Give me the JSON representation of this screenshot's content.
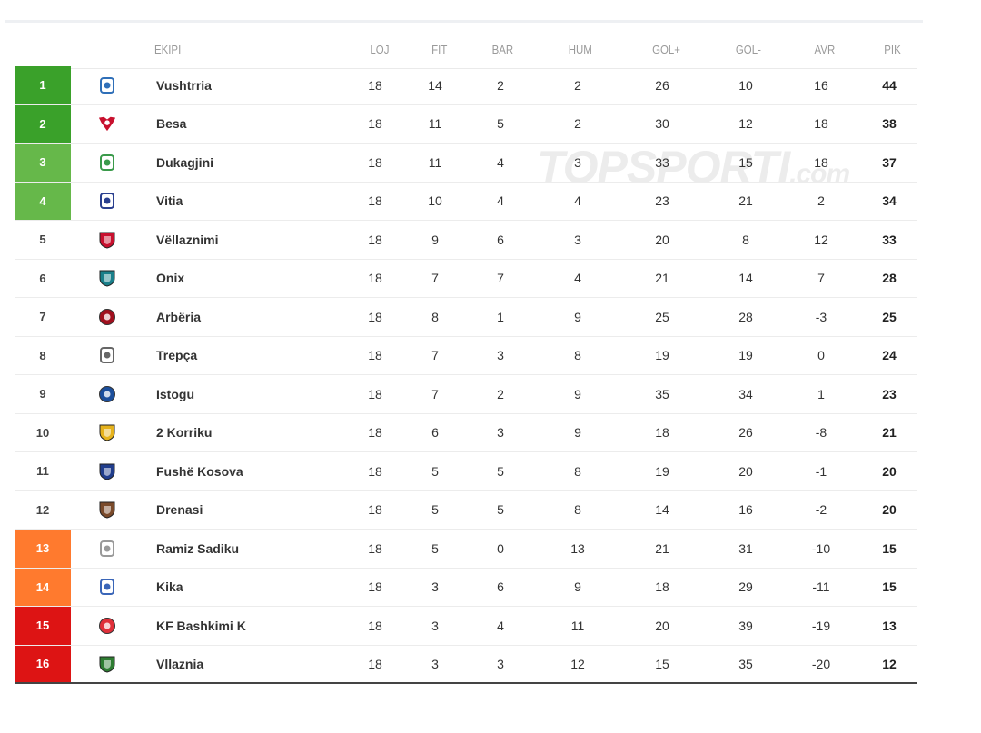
{
  "colors": {
    "champion": "#3aa12a",
    "promo": "#66b84a",
    "relegation_playoff": "#ff7a2e",
    "relegation": "#dd1414"
  },
  "watermark": {
    "brand": "TOPSPORTI",
    "domain": ".com"
  },
  "headers": {
    "team": "EKIPI",
    "played": "LOJ",
    "won": "FIT",
    "drawn": "BAR",
    "lost": "HUM",
    "gf": "GOL+",
    "ga": "GOL-",
    "gd": "AVR",
    "pts": "PIK"
  },
  "rows": [
    {
      "pos": "1",
      "team": "Vushtrria",
      "played": "18",
      "won": "14",
      "drawn": "2",
      "lost": "2",
      "gf": "26",
      "ga": "10",
      "gd": "16",
      "pts": "44",
      "zone": "champion",
      "logo": "crest-blue-white",
      "logo_color": "#2f6fb8"
    },
    {
      "pos": "2",
      "team": "Besa",
      "played": "18",
      "won": "11",
      "drawn": "5",
      "lost": "2",
      "gf": "30",
      "ga": "12",
      "gd": "18",
      "pts": "38",
      "zone": "champion",
      "logo": "eagle-red",
      "logo_color": "#c8102e"
    },
    {
      "pos": "3",
      "team": "Dukagjini",
      "played": "18",
      "won": "11",
      "drawn": "4",
      "lost": "3",
      "gf": "33",
      "ga": "15",
      "gd": "18",
      "pts": "37",
      "zone": "promo",
      "logo": "crest-green",
      "logo_color": "#3a9a4a"
    },
    {
      "pos": "4",
      "team": "Vitia",
      "played": "18",
      "won": "10",
      "drawn": "4",
      "lost": "4",
      "gf": "23",
      "ga": "21",
      "gd": "2",
      "pts": "34",
      "zone": "promo",
      "logo": "crest-blue",
      "logo_color": "#2a3f8f"
    },
    {
      "pos": "5",
      "team": "Vëllaznimi",
      "played": "18",
      "won": "9",
      "drawn": "6",
      "lost": "3",
      "gf": "20",
      "ga": "8",
      "gd": "12",
      "pts": "33",
      "zone": "",
      "logo": "shield-red",
      "logo_color": "#c8102e"
    },
    {
      "pos": "6",
      "team": "Onix",
      "played": "18",
      "won": "7",
      "drawn": "7",
      "lost": "4",
      "gf": "21",
      "ga": "14",
      "gd": "7",
      "pts": "28",
      "zone": "",
      "logo": "shield-teal",
      "logo_color": "#1a7f8a"
    },
    {
      "pos": "7",
      "team": "Arbëria",
      "played": "18",
      "won": "8",
      "drawn": "1",
      "lost": "9",
      "gf": "25",
      "ga": "28",
      "gd": "-3",
      "pts": "25",
      "zone": "",
      "logo": "circle-red-black",
      "logo_color": "#a0101e"
    },
    {
      "pos": "8",
      "team": "Trepça",
      "played": "18",
      "won": "7",
      "drawn": "3",
      "lost": "8",
      "gf": "19",
      "ga": "19",
      "gd": "0",
      "pts": "24",
      "zone": "",
      "logo": "crest-gray",
      "logo_color": "#666666"
    },
    {
      "pos": "9",
      "team": "Istogu",
      "played": "18",
      "won": "7",
      "drawn": "2",
      "lost": "9",
      "gf": "35",
      "ga": "34",
      "gd": "1",
      "pts": "23",
      "zone": "",
      "logo": "ball-blue",
      "logo_color": "#1c4f9c"
    },
    {
      "pos": "10",
      "team": "2 Korriku",
      "played": "18",
      "won": "6",
      "drawn": "3",
      "lost": "9",
      "gf": "18",
      "ga": "26",
      "gd": "-8",
      "pts": "21",
      "zone": "",
      "logo": "shield-yellow-black",
      "logo_color": "#e5b21c"
    },
    {
      "pos": "11",
      "team": "Fushë Kosova",
      "played": "18",
      "won": "5",
      "drawn": "5",
      "lost": "8",
      "gf": "19",
      "ga": "20",
      "gd": "-1",
      "pts": "20",
      "zone": "",
      "logo": "shield-blue",
      "logo_color": "#203d8c"
    },
    {
      "pos": "12",
      "team": "Drenasi",
      "played": "18",
      "won": "5",
      "drawn": "5",
      "lost": "8",
      "gf": "14",
      "ga": "16",
      "gd": "-2",
      "pts": "20",
      "zone": "",
      "logo": "shield-brown",
      "logo_color": "#7a4a2a"
    },
    {
      "pos": "13",
      "team": "Ramiz Sadiku",
      "played": "18",
      "won": "5",
      "drawn": "0",
      "lost": "13",
      "gf": "21",
      "ga": "31",
      "gd": "-10",
      "pts": "15",
      "zone": "relegation_playoff",
      "logo": "crest-gray-light",
      "logo_color": "#9a9a9a"
    },
    {
      "pos": "14",
      "team": "Kika",
      "played": "18",
      "won": "3",
      "drawn": "6",
      "lost": "9",
      "gf": "18",
      "ga": "29",
      "gd": "-11",
      "pts": "15",
      "zone": "relegation_playoff",
      "logo": "crest-blue-small",
      "logo_color": "#3a66b8"
    },
    {
      "pos": "15",
      "team": "KF Bashkimi K",
      "played": "18",
      "won": "3",
      "drawn": "4",
      "lost": "11",
      "gf": "20",
      "ga": "39",
      "gd": "-19",
      "pts": "13",
      "zone": "relegation",
      "logo": "circle-red",
      "logo_color": "#e0303a"
    },
    {
      "pos": "16",
      "team": "Vllaznia",
      "played": "18",
      "won": "3",
      "drawn": "3",
      "lost": "12",
      "gf": "15",
      "ga": "35",
      "gd": "-20",
      "pts": "12",
      "zone": "relegation",
      "logo": "shield-green-red",
      "logo_color": "#2e7d32"
    }
  ]
}
